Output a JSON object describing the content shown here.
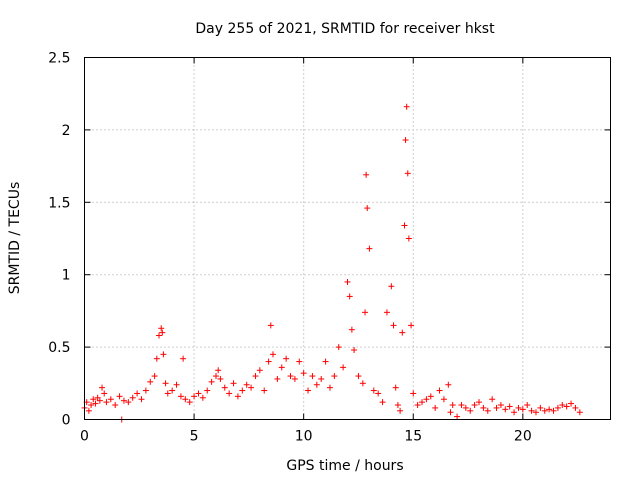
{
  "chart_data": {
    "type": "scatter",
    "title": "Day 255 of 2021, SRMTID for receiver hkst",
    "xlabel": "GPS time / hours",
    "ylabel": "SRMTID / TECUs",
    "xlim": [
      0,
      24
    ],
    "ylim": [
      0,
      2.5
    ],
    "xticks": [
      0,
      5,
      10,
      15,
      20
    ],
    "xtick_labels": [
      "0",
      "5",
      "10",
      "15",
      "20"
    ],
    "yticks": [
      0,
      0.5,
      1,
      1.5,
      2,
      2.5
    ],
    "ytick_labels": [
      "0",
      "0.5",
      "1",
      "1.5",
      "2",
      "2.5"
    ],
    "grid": true,
    "marker": "+",
    "color": "#ff0000",
    "series": [
      {
        "name": "SRMTID",
        "x": [
          0.0,
          0.1,
          0.2,
          0.3,
          0.4,
          0.5,
          0.6,
          0.7,
          0.8,
          0.9,
          1.0,
          1.2,
          1.4,
          1.6,
          1.7,
          1.8,
          2.0,
          2.2,
          2.4,
          2.6,
          2.8,
          3.0,
          3.2,
          3.3,
          3.4,
          3.5,
          3.55,
          3.6,
          3.7,
          3.8,
          4.0,
          4.2,
          4.4,
          4.5,
          4.6,
          4.8,
          5.0,
          5.2,
          5.4,
          5.6,
          5.8,
          6.0,
          6.1,
          6.2,
          6.4,
          6.6,
          6.8,
          7.0,
          7.2,
          7.4,
          7.6,
          7.8,
          8.0,
          8.2,
          8.4,
          8.5,
          8.6,
          8.8,
          9.0,
          9.2,
          9.4,
          9.6,
          9.8,
          10.0,
          10.2,
          10.4,
          10.6,
          10.8,
          11.0,
          11.2,
          11.4,
          11.6,
          11.8,
          12.0,
          12.1,
          12.2,
          12.3,
          12.5,
          12.7,
          12.8,
          12.85,
          12.9,
          13.0,
          13.2,
          13.4,
          13.6,
          13.8,
          14.0,
          14.1,
          14.2,
          14.3,
          14.4,
          14.5,
          14.6,
          14.65,
          14.7,
          14.75,
          14.8,
          14.9,
          15.0,
          15.2,
          15.4,
          15.6,
          15.8,
          16.0,
          16.2,
          16.4,
          16.6,
          16.7,
          16.8,
          17.0,
          17.2,
          17.4,
          17.6,
          17.8,
          18.0,
          18.2,
          18.4,
          18.6,
          18.8,
          19.0,
          19.2,
          19.4,
          19.6,
          19.8,
          20.0,
          20.2,
          20.4,
          20.6,
          20.8,
          21.0,
          21.2,
          21.4,
          21.6,
          21.8,
          22.0,
          22.2,
          22.4,
          22.6
        ],
        "y": [
          0.08,
          0.12,
          0.06,
          0.1,
          0.14,
          0.11,
          0.15,
          0.13,
          0.22,
          0.18,
          0.12,
          0.14,
          0.1,
          0.16,
          0.0,
          0.13,
          0.12,
          0.15,
          0.18,
          0.14,
          0.2,
          0.26,
          0.3,
          0.42,
          0.58,
          0.63,
          0.6,
          0.45,
          0.25,
          0.18,
          0.2,
          0.24,
          0.16,
          0.42,
          0.14,
          0.12,
          0.16,
          0.18,
          0.15,
          0.2,
          0.26,
          0.3,
          0.34,
          0.28,
          0.22,
          0.18,
          0.25,
          0.16,
          0.2,
          0.24,
          0.22,
          0.3,
          0.34,
          0.2,
          0.4,
          0.65,
          0.45,
          0.28,
          0.36,
          0.42,
          0.3,
          0.28,
          0.4,
          0.32,
          0.2,
          0.3,
          0.24,
          0.28,
          0.4,
          0.22,
          0.3,
          0.5,
          0.36,
          0.95,
          0.85,
          0.62,
          0.48,
          0.3,
          0.25,
          0.74,
          1.69,
          1.46,
          1.18,
          0.2,
          0.18,
          0.12,
          0.74,
          0.92,
          0.65,
          0.22,
          0.1,
          0.06,
          0.6,
          1.34,
          1.93,
          2.16,
          1.7,
          1.25,
          0.65,
          0.18,
          0.1,
          0.12,
          0.14,
          0.16,
          0.08,
          0.2,
          0.14,
          0.24,
          0.05,
          0.1,
          0.02,
          0.1,
          0.08,
          0.06,
          0.1,
          0.12,
          0.08,
          0.06,
          0.14,
          0.08,
          0.1,
          0.07,
          0.09,
          0.05,
          0.08,
          0.07,
          0.1,
          0.06,
          0.05,
          0.08,
          0.06,
          0.07,
          0.06,
          0.08,
          0.1,
          0.09,
          0.11,
          0.08,
          0.05
        ]
      }
    ]
  }
}
